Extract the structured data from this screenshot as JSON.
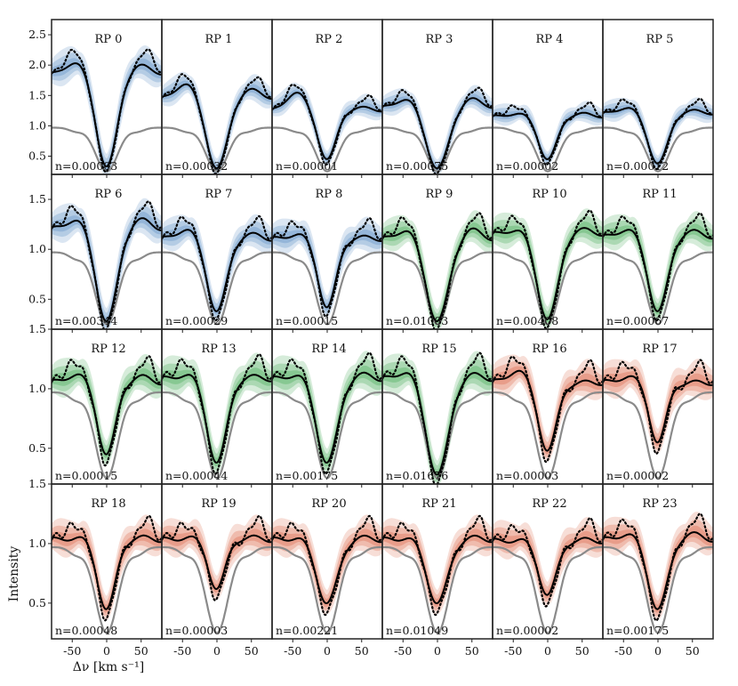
{
  "chart_data": {
    "type": "line",
    "title": "",
    "xlabel": "Δν [km s⁻¹]",
    "ylabel": "Intensity",
    "xlim": [
      -80,
      80
    ],
    "xticks": [
      -50,
      0,
      50
    ],
    "rows": [
      {
        "ylim": [
          0.2,
          2.75
        ],
        "yticks": [
          0.5,
          1.0,
          1.5,
          2.0,
          2.5
        ]
      },
      {
        "ylim": [
          0.2,
          1.75
        ],
        "yticks": [
          0.5,
          1.0,
          1.5
        ]
      },
      {
        "ylim": [
          0.2,
          1.5
        ],
        "yticks": [
          0.5,
          1.0,
          1.5
        ]
      },
      {
        "ylim": [
          0.2,
          1.5
        ],
        "yticks": [
          0.5,
          1.0,
          1.5
        ]
      }
    ],
    "legend": "none",
    "series_styles": {
      "mean_profile": "solid black",
      "observed_profile": "dotted black",
      "reference_profile": "solid grey",
      "spread": "shaded band"
    },
    "panels": [
      {
        "label": "RP 0",
        "n": "n=0.00003",
        "color": "#6e9ccb",
        "continuum": 1.85,
        "left_peak": 2.05,
        "right_peak": 2.0,
        "core": 0.33,
        "width": 15
      },
      {
        "label": "RP 1",
        "n": "n=0.00032",
        "color": "#6e9ccb",
        "continuum": 1.45,
        "left_peak": 1.7,
        "right_peak": 1.6,
        "core": 0.3,
        "width": 15
      },
      {
        "label": "RP 2",
        "n": "n=0.00001",
        "color": "#6e9ccb",
        "continuum": 1.25,
        "left_peak": 1.55,
        "right_peak": 1.3,
        "core": 0.45,
        "width": 13
      },
      {
        "label": "RP 3",
        "n": "n=0.00075",
        "color": "#6e9ccb",
        "continuum": 1.3,
        "left_peak": 1.45,
        "right_peak": 1.45,
        "core": 0.3,
        "width": 16
      },
      {
        "label": "RP 4",
        "n": "n=0.00002",
        "color": "#6e9ccb",
        "continuum": 1.15,
        "left_peak": 1.2,
        "right_peak": 1.2,
        "core": 0.45,
        "width": 13
      },
      {
        "label": "RP 5",
        "n": "n=0.00012",
        "color": "#6e9ccb",
        "continuum": 1.2,
        "left_peak": 1.3,
        "right_peak": 1.25,
        "core": 0.38,
        "width": 14
      },
      {
        "label": "RP 6",
        "n": "n=0.00344",
        "color": "#6e9ccb",
        "continuum": 1.2,
        "left_peak": 1.3,
        "right_peak": 1.3,
        "core": 0.28,
        "width": 15
      },
      {
        "label": "RP 7",
        "n": "n=0.00029",
        "color": "#6e9ccb",
        "continuum": 1.1,
        "left_peak": 1.2,
        "right_peak": 1.15,
        "core": 0.38,
        "width": 14
      },
      {
        "label": "RP 8",
        "n": "n=0.00015",
        "color": "#6e9ccb",
        "continuum": 1.1,
        "left_peak": 1.15,
        "right_peak": 1.12,
        "core": 0.42,
        "width": 13
      },
      {
        "label": "RP 9",
        "n": "n=0.01003",
        "color": "#5cb56a",
        "continuum": 1.1,
        "left_peak": 1.2,
        "right_peak": 1.2,
        "core": 0.28,
        "width": 16
      },
      {
        "label": "RP 10",
        "n": "n=0.00408",
        "color": "#5cb56a",
        "continuum": 1.15,
        "left_peak": 1.2,
        "right_peak": 1.2,
        "core": 0.3,
        "width": 15
      },
      {
        "label": "RP 11",
        "n": "n=0.00067",
        "color": "#5cb56a",
        "continuum": 1.12,
        "left_peak": 1.2,
        "right_peak": 1.18,
        "core": 0.38,
        "width": 14
      },
      {
        "label": "RP 12",
        "n": "n=0.00015",
        "color": "#5cb56a",
        "continuum": 1.05,
        "left_peak": 1.12,
        "right_peak": 1.1,
        "core": 0.45,
        "width": 13
      },
      {
        "label": "RP 13",
        "n": "n=0.00044",
        "color": "#5cb56a",
        "continuum": 1.08,
        "left_peak": 1.12,
        "right_peak": 1.1,
        "core": 0.38,
        "width": 14
      },
      {
        "label": "RP 14",
        "n": "n=0.00175",
        "color": "#5cb56a",
        "continuum": 1.08,
        "left_peak": 1.12,
        "right_peak": 1.12,
        "core": 0.38,
        "width": 15
      },
      {
        "label": "RP 15",
        "n": "n=0.01676",
        "color": "#5cb56a",
        "continuum": 1.08,
        "left_peak": 1.15,
        "right_peak": 1.12,
        "core": 0.28,
        "width": 16
      },
      {
        "label": "RP 16",
        "n": "n=0.00003",
        "color": "#e07a5f",
        "continuum": 1.05,
        "left_peak": 1.15,
        "right_peak": 1.05,
        "core": 0.48,
        "width": 13
      },
      {
        "label": "RP 17",
        "n": "n=0.00002",
        "color": "#e07a5f",
        "continuum": 1.05,
        "left_peak": 1.1,
        "right_peak": 1.05,
        "core": 0.55,
        "width": 12
      },
      {
        "label": "RP 18",
        "n": "n=0.00048",
        "color": "#e07a5f",
        "continuum": 1.03,
        "left_peak": 1.05,
        "right_peak": 1.05,
        "core": 0.45,
        "width": 13
      },
      {
        "label": "RP 19",
        "n": "n=0.00003",
        "color": "#e07a5f",
        "continuum": 1.03,
        "left_peak": 1.05,
        "right_peak": 1.05,
        "core": 0.62,
        "width": 12
      },
      {
        "label": "RP 20",
        "n": "n=0.00221",
        "color": "#e07a5f",
        "continuum": 1.03,
        "left_peak": 1.05,
        "right_peak": 1.05,
        "core": 0.5,
        "width": 15
      },
      {
        "label": "RP 21",
        "n": "n=0.01049",
        "color": "#e07a5f",
        "continuum": 1.03,
        "left_peak": 1.05,
        "right_peak": 1.05,
        "core": 0.5,
        "width": 15
      },
      {
        "label": "RP 22",
        "n": "n=0.00002",
        "color": "#e07a5f",
        "continuum": 1.02,
        "left_peak": 1.03,
        "right_peak": 1.03,
        "core": 0.57,
        "width": 13
      },
      {
        "label": "RP 23",
        "n": "n=0.00175",
        "color": "#e07a5f",
        "continuum": 1.03,
        "left_peak": 1.08,
        "right_peak": 1.08,
        "core": 0.45,
        "width": 14
      }
    ]
  }
}
